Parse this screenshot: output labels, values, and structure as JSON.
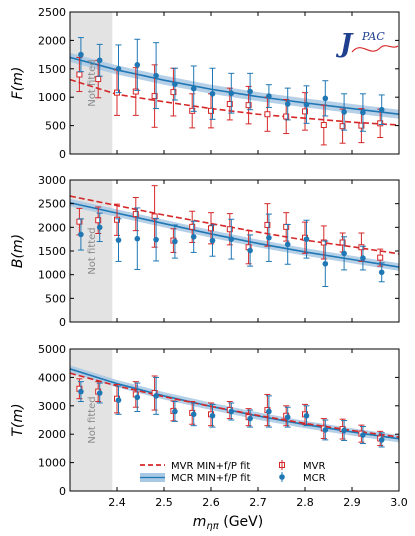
{
  "chart_data": [
    {
      "type": "scatter",
      "panel": "F",
      "ylabel": "F(m)",
      "ylim": [
        0,
        2500
      ],
      "yticks": [
        0,
        500,
        1000,
        1500,
        2000,
        2500
      ],
      "shaded_label": "Not fitted",
      "shaded_range": [
        2.3,
        2.39
      ],
      "fit_MVR": [
        [
          2.3,
          1310
        ],
        [
          2.4,
          1050
        ],
        [
          2.5,
          920
        ],
        [
          2.6,
          800
        ],
        [
          2.7,
          700
        ],
        [
          2.8,
          630
        ],
        [
          2.9,
          560
        ],
        [
          3.0,
          510
        ]
      ],
      "fit_MCR": [
        [
          2.3,
          1700
        ],
        [
          2.4,
          1480
        ],
        [
          2.5,
          1300
        ],
        [
          2.6,
          1140
        ],
        [
          2.7,
          1010
        ],
        [
          2.8,
          900
        ],
        [
          2.9,
          800
        ],
        [
          3.0,
          700
        ]
      ],
      "band_halfwidth_MCR": 80,
      "MVR": [
        {
          "x": 2.32,
          "y": 1400,
          "err": 300
        },
        {
          "x": 2.36,
          "y": 1320,
          "err": 330
        },
        {
          "x": 2.4,
          "y": 1080,
          "err": 400
        },
        {
          "x": 2.44,
          "y": 1100,
          "err": 420
        },
        {
          "x": 2.48,
          "y": 1020,
          "err": 550
        },
        {
          "x": 2.52,
          "y": 1090,
          "err": 420
        },
        {
          "x": 2.56,
          "y": 760,
          "err": 300
        },
        {
          "x": 2.6,
          "y": 760,
          "err": 300
        },
        {
          "x": 2.64,
          "y": 880,
          "err": 280
        },
        {
          "x": 2.68,
          "y": 860,
          "err": 330
        },
        {
          "x": 2.72,
          "y": 700,
          "err": 300
        },
        {
          "x": 2.76,
          "y": 660,
          "err": 300
        },
        {
          "x": 2.8,
          "y": 750,
          "err": 330
        },
        {
          "x": 2.84,
          "y": 510,
          "err": 350
        },
        {
          "x": 2.88,
          "y": 490,
          "err": 300
        },
        {
          "x": 2.92,
          "y": 500,
          "err": 300
        },
        {
          "x": 2.96,
          "y": 540,
          "err": 250
        }
      ],
      "MCR": [
        {
          "x": 2.32,
          "y": 1750,
          "err": 300
        },
        {
          "x": 2.36,
          "y": 1650,
          "err": 280
        },
        {
          "x": 2.4,
          "y": 1500,
          "err": 420
        },
        {
          "x": 2.44,
          "y": 1570,
          "err": 450
        },
        {
          "x": 2.48,
          "y": 1380,
          "err": 580
        },
        {
          "x": 2.52,
          "y": 1230,
          "err": 280
        },
        {
          "x": 2.56,
          "y": 1150,
          "err": 400
        },
        {
          "x": 2.6,
          "y": 1060,
          "err": 450
        },
        {
          "x": 2.64,
          "y": 1070,
          "err": 350
        },
        {
          "x": 2.68,
          "y": 1100,
          "err": 320
        },
        {
          "x": 2.72,
          "y": 1020,
          "err": 200
        },
        {
          "x": 2.76,
          "y": 880,
          "err": 280
        },
        {
          "x": 2.8,
          "y": 870,
          "err": 330
        },
        {
          "x": 2.84,
          "y": 980,
          "err": 310
        },
        {
          "x": 2.88,
          "y": 740,
          "err": 320
        },
        {
          "x": 2.92,
          "y": 730,
          "err": 330
        },
        {
          "x": 2.96,
          "y": 780,
          "err": 260
        }
      ]
    },
    {
      "type": "scatter",
      "panel": "B",
      "ylabel": "B(m)",
      "ylim": [
        0,
        3000
      ],
      "yticks": [
        0,
        500,
        1000,
        1500,
        2000,
        2500,
        3000
      ],
      "shaded_label": "Not fitted",
      "shaded_range": [
        2.3,
        2.39
      ],
      "fit_MVR": [
        [
          2.3,
          2660
        ],
        [
          2.4,
          2460
        ],
        [
          2.5,
          2260
        ],
        [
          2.6,
          2080
        ],
        [
          2.7,
          1900
        ],
        [
          2.8,
          1730
        ],
        [
          2.9,
          1590
        ],
        [
          3.0,
          1440
        ]
      ],
      "fit_MCR": [
        [
          2.3,
          2520
        ],
        [
          2.4,
          2300
        ],
        [
          2.5,
          2080
        ],
        [
          2.6,
          1860
        ],
        [
          2.7,
          1660
        ],
        [
          2.8,
          1480
        ],
        [
          2.9,
          1320
        ],
        [
          3.0,
          1160
        ]
      ],
      "band_halfwidth_MCR": 80,
      "MVR": [
        {
          "x": 2.32,
          "y": 2120,
          "err": 280
        },
        {
          "x": 2.36,
          "y": 2150,
          "err": 280
        },
        {
          "x": 2.4,
          "y": 2160,
          "err": 330
        },
        {
          "x": 2.44,
          "y": 2280,
          "err": 350
        },
        {
          "x": 2.48,
          "y": 2230,
          "err": 650
        },
        {
          "x": 2.52,
          "y": 1720,
          "err": 250
        },
        {
          "x": 2.56,
          "y": 2010,
          "err": 330
        },
        {
          "x": 2.6,
          "y": 1980,
          "err": 330
        },
        {
          "x": 2.64,
          "y": 1960,
          "err": 330
        },
        {
          "x": 2.68,
          "y": 1580,
          "err": 350
        },
        {
          "x": 2.72,
          "y": 2050,
          "err": 450
        },
        {
          "x": 2.76,
          "y": 2010,
          "err": 300
        },
        {
          "x": 2.8,
          "y": 1780,
          "err": 330
        },
        {
          "x": 2.84,
          "y": 1680,
          "err": 350
        },
        {
          "x": 2.88,
          "y": 1680,
          "err": 200
        },
        {
          "x": 2.92,
          "y": 1580,
          "err": 300
        },
        {
          "x": 2.96,
          "y": 1360,
          "err": 180
        }
      ],
      "MCR": [
        {
          "x": 2.32,
          "y": 1850,
          "err": 330
        },
        {
          "x": 2.36,
          "y": 2000,
          "err": 300
        },
        {
          "x": 2.4,
          "y": 1730,
          "err": 450
        },
        {
          "x": 2.44,
          "y": 1760,
          "err": 650
        },
        {
          "x": 2.48,
          "y": 1740,
          "err": 450
        },
        {
          "x": 2.52,
          "y": 1700,
          "err": 350
        },
        {
          "x": 2.56,
          "y": 1800,
          "err": 330
        },
        {
          "x": 2.6,
          "y": 1720,
          "err": 330
        },
        {
          "x": 2.64,
          "y": 1750,
          "err": 420
        },
        {
          "x": 2.68,
          "y": 1510,
          "err": 330
        },
        {
          "x": 2.72,
          "y": 1780,
          "err": 500
        },
        {
          "x": 2.76,
          "y": 1640,
          "err": 420
        },
        {
          "x": 2.8,
          "y": 1750,
          "err": 400
        },
        {
          "x": 2.84,
          "y": 1230,
          "err": 480
        },
        {
          "x": 2.88,
          "y": 1450,
          "err": 350
        },
        {
          "x": 2.92,
          "y": 1350,
          "err": 250
        },
        {
          "x": 2.96,
          "y": 1050,
          "err": 200
        }
      ]
    },
    {
      "type": "scatter",
      "panel": "T",
      "ylabel": "T(m)",
      "ylim": [
        0,
        5000
      ],
      "yticks": [
        0,
        1000,
        2000,
        3000,
        4000,
        5000
      ],
      "xlabel": "m_{ηπ} (GeV)",
      "xlim": [
        2.3,
        3.0
      ],
      "xticks": [
        "2.4",
        "2.5",
        "2.6",
        "2.7",
        "2.8",
        "2.9",
        "3.0"
      ],
      "shaded_label": "Not fitted",
      "shaded_range": [
        2.3,
        2.39
      ],
      "fit_MVR": [
        [
          2.3,
          4150
        ],
        [
          2.4,
          3700
        ],
        [
          2.5,
          3320
        ],
        [
          2.6,
          2980
        ],
        [
          2.7,
          2660
        ],
        [
          2.8,
          2380
        ],
        [
          2.9,
          2130
        ],
        [
          3.0,
          1900
        ]
      ],
      "fit_MCR": [
        [
          2.3,
          4300
        ],
        [
          2.4,
          3780
        ],
        [
          2.5,
          3350
        ],
        [
          2.6,
          2980
        ],
        [
          2.7,
          2640
        ],
        [
          2.8,
          2340
        ],
        [
          2.9,
          2080
        ],
        [
          3.0,
          1840
        ]
      ],
      "band_halfwidth_MCR": 130,
      "MVR": [
        {
          "x": 2.32,
          "y": 3600,
          "err": 350
        },
        {
          "x": 2.36,
          "y": 3500,
          "err": 350
        },
        {
          "x": 2.4,
          "y": 3250,
          "err": 500
        },
        {
          "x": 2.44,
          "y": 3400,
          "err": 450
        },
        {
          "x": 2.48,
          "y": 3450,
          "err": 600
        },
        {
          "x": 2.52,
          "y": 2820,
          "err": 350
        },
        {
          "x": 2.56,
          "y": 2750,
          "err": 400
        },
        {
          "x": 2.6,
          "y": 2700,
          "err": 400
        },
        {
          "x": 2.64,
          "y": 2850,
          "err": 300
        },
        {
          "x": 2.68,
          "y": 2600,
          "err": 300
        },
        {
          "x": 2.72,
          "y": 2850,
          "err": 550
        },
        {
          "x": 2.76,
          "y": 2650,
          "err": 350
        },
        {
          "x": 2.8,
          "y": 2700,
          "err": 350
        },
        {
          "x": 2.84,
          "y": 2200,
          "err": 350
        },
        {
          "x": 2.88,
          "y": 2180,
          "err": 350
        },
        {
          "x": 2.92,
          "y": 2020,
          "err": 300
        },
        {
          "x": 2.96,
          "y": 1850,
          "err": 250
        }
      ],
      "MCR": [
        {
          "x": 2.32,
          "y": 3500,
          "err": 350
        },
        {
          "x": 2.36,
          "y": 3450,
          "err": 350
        },
        {
          "x": 2.4,
          "y": 3200,
          "err": 500
        },
        {
          "x": 2.44,
          "y": 3300,
          "err": 500
        },
        {
          "x": 2.48,
          "y": 3350,
          "err": 650
        },
        {
          "x": 2.52,
          "y": 2800,
          "err": 350
        },
        {
          "x": 2.56,
          "y": 2700,
          "err": 400
        },
        {
          "x": 2.6,
          "y": 2650,
          "err": 400
        },
        {
          "x": 2.64,
          "y": 2800,
          "err": 300
        },
        {
          "x": 2.68,
          "y": 2550,
          "err": 300
        },
        {
          "x": 2.72,
          "y": 2800,
          "err": 550
        },
        {
          "x": 2.76,
          "y": 2600,
          "err": 350
        },
        {
          "x": 2.8,
          "y": 2650,
          "err": 350
        },
        {
          "x": 2.84,
          "y": 2150,
          "err": 350
        },
        {
          "x": 2.88,
          "y": 2130,
          "err": 350
        },
        {
          "x": 2.92,
          "y": 1970,
          "err": 300
        },
        {
          "x": 2.96,
          "y": 1800,
          "err": 250
        }
      ]
    }
  ],
  "legend": {
    "fit_mvr": "MVR MIN+f/P fit",
    "fit_mcr": "MCR MIN+f/P fit",
    "pts_mvr": "MVR",
    "pts_mcr": "MCR"
  },
  "logo": "JPAC",
  "colors": {
    "mvr": "#d62728",
    "mcr": "#1f77b4",
    "band": "#a9c8e4",
    "shade": "#e3e3e3"
  }
}
